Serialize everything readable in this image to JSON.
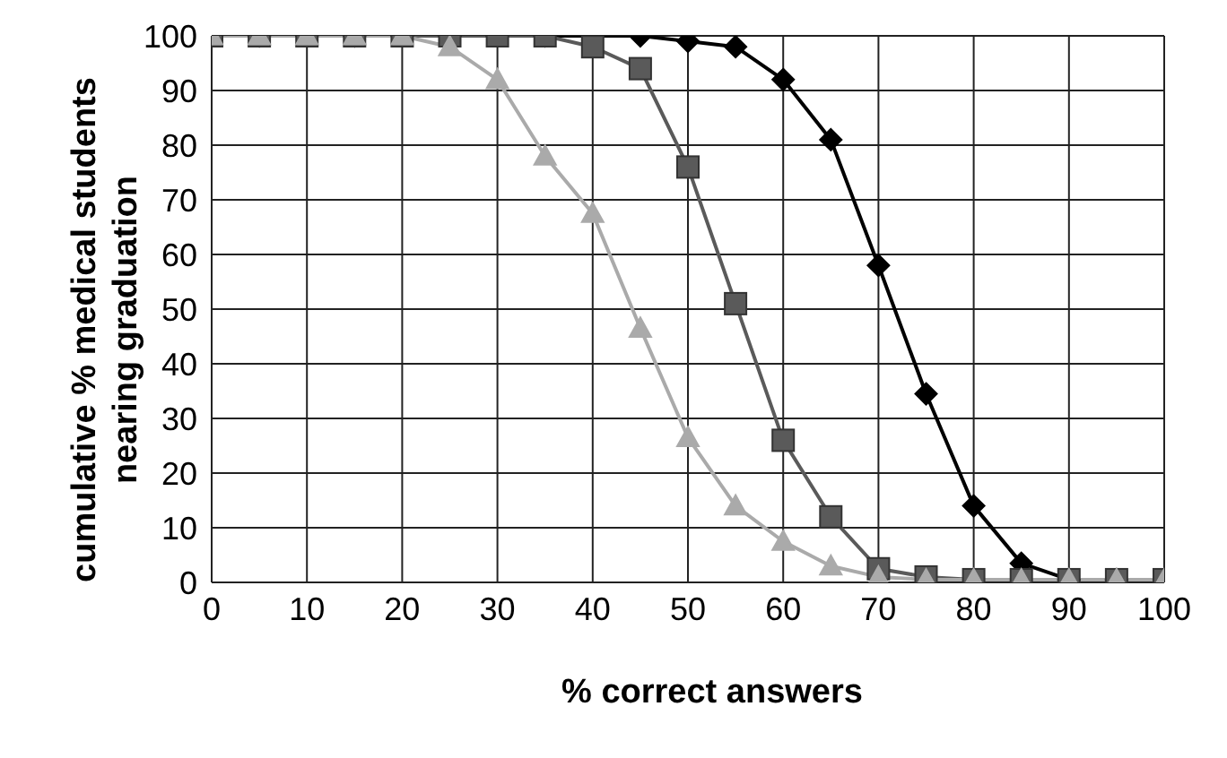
{
  "chart_data": {
    "type": "line",
    "xlabel": "% correct answers",
    "ylabel": "cumulative % medical students nearing graduation",
    "x": [
      0,
      5,
      10,
      15,
      20,
      25,
      30,
      35,
      40,
      45,
      50,
      55,
      60,
      65,
      70,
      75,
      80,
      85,
      90,
      95,
      100
    ],
    "xlim": [
      0,
      100
    ],
    "xticks": [
      0,
      10,
      20,
      30,
      40,
      50,
      60,
      70,
      80,
      90,
      100
    ],
    "ylim": [
      0,
      100
    ],
    "yticks": [
      0,
      10,
      20,
      30,
      40,
      50,
      60,
      70,
      80,
      90,
      100
    ],
    "grid": true,
    "legend": false,
    "series": [
      {
        "color": "#000000",
        "marker": "diamond",
        "values": [
          100,
          100,
          100,
          100,
          100,
          100,
          100,
          100,
          100,
          100,
          99,
          98,
          92,
          81,
          58,
          34.5,
          14,
          3.5,
          0.5,
          0.5,
          0.5
        ]
      },
      {
        "color": "#5a5a5a",
        "marker": "square",
        "values": [
          100,
          100,
          100,
          100,
          100,
          100,
          100,
          100,
          98,
          94,
          76,
          51,
          26,
          12,
          2.5,
          1,
          0.5,
          0.5,
          0.5,
          0.5,
          0.5
        ]
      },
      {
        "color": "#aaaaaa",
        "marker": "triangle",
        "values": [
          100,
          100,
          100,
          100,
          100,
          98,
          92,
          78,
          67.5,
          46.5,
          26.5,
          14,
          7.5,
          3,
          1,
          0.5,
          0.5,
          0.5,
          0.5,
          0.5,
          0.5
        ]
      }
    ]
  }
}
